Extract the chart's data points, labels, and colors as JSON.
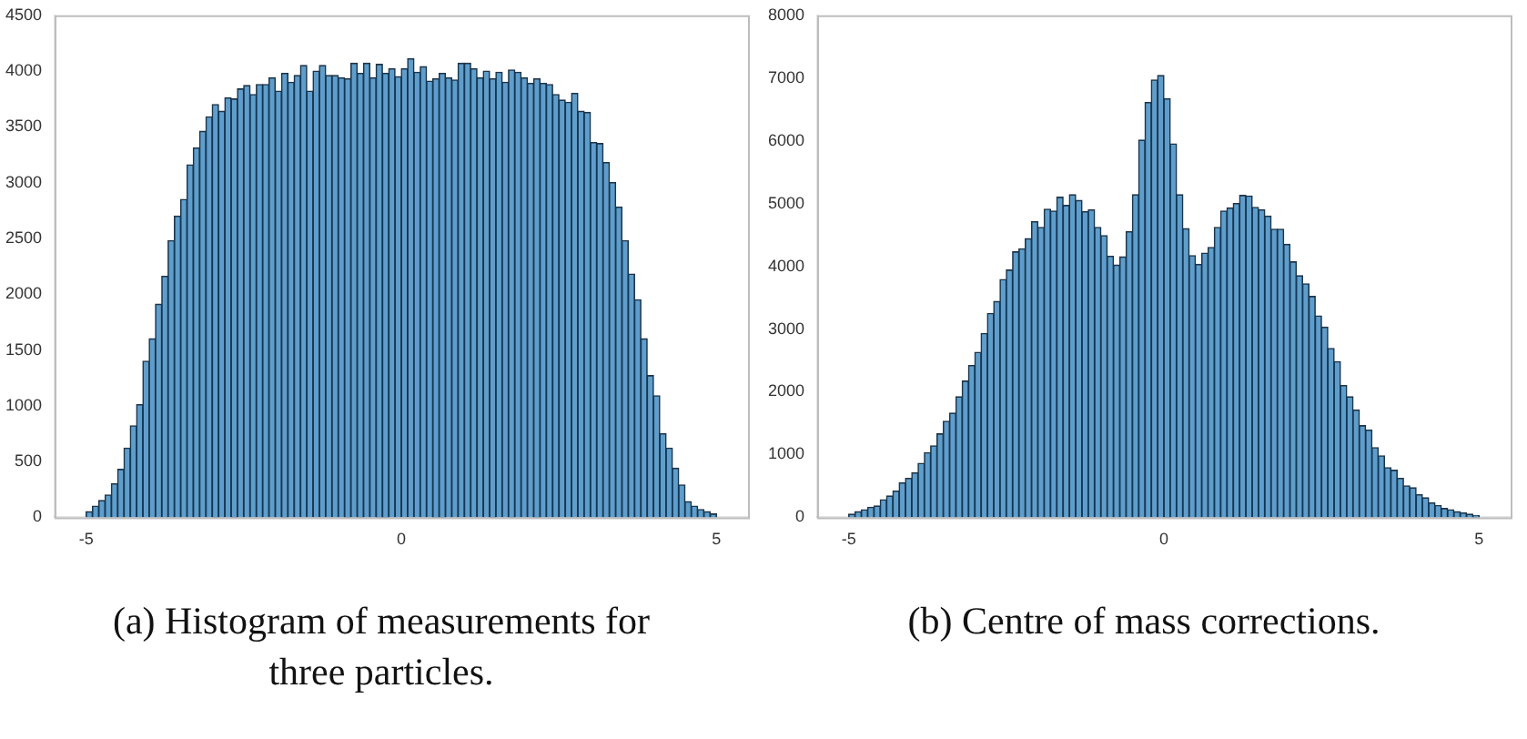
{
  "chart_data": [
    {
      "type": "histogram",
      "title": "(a) Histogram of measurements for three particles.",
      "color": "#5b9fd0",
      "bins": [
        -5,
        -4.9,
        -4.8,
        -4.7,
        -4.6,
        -4.5,
        -4.4,
        -4.3,
        -4.2,
        -4.1,
        -4,
        -3.9,
        -3.8,
        -3.7,
        -3.6,
        -3.5,
        -3.4,
        -3.3,
        -3.2,
        -3.1,
        -3,
        -2.9,
        -2.8,
        -2.7,
        -2.6,
        -2.5,
        -2.4,
        -2.3,
        -2.2,
        -2.1,
        -2,
        -1.9,
        -1.8,
        -1.7,
        -1.6,
        -1.5,
        -1.4,
        -1.3,
        -1.2,
        -1.1,
        -1,
        -0.9,
        -0.8,
        -0.7,
        -0.6,
        -0.5,
        -0.4,
        -0.3,
        -0.2,
        -0.1,
        0,
        0.1,
        0.2,
        0.3,
        0.4,
        0.5,
        0.6,
        0.7,
        0.8,
        0.9,
        1,
        1.1,
        1.2,
        1.3,
        1.4,
        1.5,
        1.6,
        1.7,
        1.8,
        1.9,
        2,
        2.1,
        2.2,
        2.3,
        2.4,
        2.5,
        2.6,
        2.7,
        2.8,
        2.9,
        3,
        3.1,
        3.2,
        3.3,
        3.4,
        3.5,
        3.6,
        3.7,
        3.8,
        3.9,
        4,
        4.1,
        4.2,
        4.3,
        4.4,
        4.5,
        4.6,
        4.7,
        4.8,
        4.9,
        5
      ],
      "values": [
        50,
        100,
        150,
        200,
        300,
        430,
        620,
        820,
        1010,
        1400,
        1600,
        1910,
        2160,
        2480,
        2700,
        2850,
        3160,
        3310,
        3460,
        3590,
        3700,
        3640,
        3760,
        3750,
        3840,
        3870,
        3790,
        3880,
        3880,
        3940,
        3820,
        3980,
        3900,
        3960,
        4050,
        3820,
        4000,
        4050,
        3960,
        3960,
        3940,
        3930,
        4070,
        3980,
        4070,
        3940,
        4060,
        3980,
        4020,
        3950,
        4020,
        4110,
        3990,
        4040,
        3910,
        3930,
        3980,
        3940,
        3920,
        4070,
        4070,
        4020,
        3940,
        4000,
        3930,
        3990,
        3900,
        4010,
        3990,
        3940,
        3890,
        3930,
        3890,
        3880,
        3790,
        3740,
        3720,
        3800,
        3640,
        3630,
        3360,
        3350,
        3180,
        3000,
        2780,
        2480,
        2180,
        1950,
        1600,
        1270,
        1090,
        750,
        620,
        440,
        290,
        140,
        100,
        70,
        50,
        30
      ],
      "xlim": [
        -5.5,
        5.5
      ],
      "xticks": [
        -5,
        0,
        5
      ],
      "ylim": [
        0,
        4500
      ],
      "yticks": [
        0,
        500,
        1000,
        1500,
        2000,
        2500,
        3000,
        3500,
        4000,
        4500
      ],
      "grid": false,
      "legend": false
    },
    {
      "type": "histogram",
      "title": "(b) Centre of mass corrections.",
      "color": "#5b9fd0",
      "bins": [
        -5,
        -4.9,
        -4.8,
        -4.7,
        -4.6,
        -4.5,
        -4.4,
        -4.3,
        -4.2,
        -4.1,
        -4,
        -3.9,
        -3.8,
        -3.7,
        -3.6,
        -3.5,
        -3.4,
        -3.3,
        -3.2,
        -3.1,
        -3,
        -2.9,
        -2.8,
        -2.7,
        -2.6,
        -2.5,
        -2.4,
        -2.3,
        -2.2,
        -2.1,
        -2,
        -1.9,
        -1.8,
        -1.7,
        -1.6,
        -1.5,
        -1.4,
        -1.3,
        -1.2,
        -1.1,
        -1,
        -0.9,
        -0.8,
        -0.7,
        -0.6,
        -0.5,
        -0.4,
        -0.3,
        -0.2,
        -0.1,
        0,
        0.1,
        0.2,
        0.3,
        0.4,
        0.5,
        0.6,
        0.7,
        0.8,
        0.9,
        1,
        1.1,
        1.2,
        1.3,
        1.4,
        1.5,
        1.6,
        1.7,
        1.8,
        1.9,
        2,
        2.1,
        2.2,
        2.3,
        2.4,
        2.5,
        2.6,
        2.7,
        2.8,
        2.9,
        3,
        3.1,
        3.2,
        3.3,
        3.4,
        3.5,
        3.6,
        3.7,
        3.8,
        3.9,
        4,
        4.1,
        4.2,
        4.3,
        4.4,
        4.5,
        4.6,
        4.7,
        4.8,
        4.9,
        5
      ],
      "values": [
        50,
        90,
        120,
        160,
        180,
        280,
        340,
        420,
        550,
        620,
        710,
        860,
        1030,
        1140,
        1330,
        1530,
        1660,
        1920,
        2170,
        2420,
        2630,
        2930,
        3250,
        3440,
        3790,
        3940,
        4230,
        4280,
        4440,
        4710,
        4620,
        4910,
        4880,
        5100,
        4970,
        5140,
        5050,
        4870,
        4900,
        4620,
        4490,
        4160,
        4020,
        4150,
        4550,
        5140,
        6010,
        6610,
        6970,
        7040,
        6670,
        5950,
        5140,
        4600,
        4170,
        4030,
        4210,
        4300,
        4620,
        4880,
        4930,
        5000,
        5130,
        5120,
        4940,
        4900,
        4800,
        4590,
        4590,
        4350,
        4070,
        3850,
        3720,
        3520,
        3210,
        3030,
        2690,
        2480,
        2100,
        1920,
        1710,
        1460,
        1390,
        1110,
        980,
        790,
        750,
        620,
        500,
        470,
        360,
        310,
        230,
        190,
        140,
        120,
        90,
        70,
        50,
        30
      ],
      "xlim": [
        -5.5,
        5.5
      ],
      "xticks": [
        -5,
        0,
        5
      ],
      "ylim": [
        0,
        8000
      ],
      "yticks": [
        0,
        1000,
        2000,
        3000,
        4000,
        5000,
        6000,
        7000,
        8000
      ],
      "grid": false,
      "legend": false
    }
  ]
}
